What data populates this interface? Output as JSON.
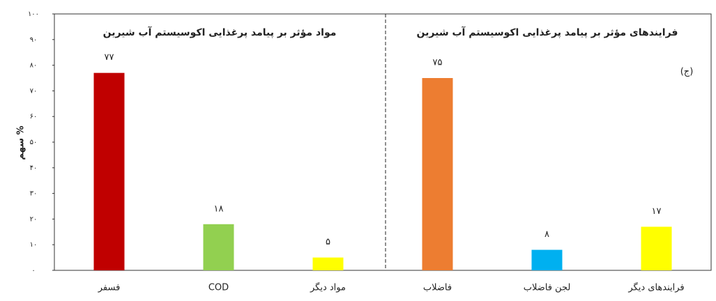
{
  "chart_data": {
    "type": "bar",
    "ylabel": "سهم %",
    "panel_titles": [
      "مواد مؤثر بر پیامد پرغذایی اکوسیستم آب شیرین",
      "فرایندهای مؤثر بر پیامد پرغذایی اکوسیستم آب شیرین"
    ],
    "annotation": "(ج)",
    "categories": [
      "فسفر",
      "COD",
      "مواد دیگر",
      "فاضلاب",
      "لجن فاضلاب",
      "فرایندهای دیگر"
    ],
    "values": [
      77,
      18,
      5,
      75,
      8,
      17
    ],
    "value_labels": [
      "۷۷",
      "۱۸",
      "۵",
      "۷۵",
      "۸",
      "۱۷"
    ],
    "colors": [
      "#c00000",
      "#92d050",
      "#ffff00",
      "#ed7d31",
      "#00b0f0",
      "#ffff00"
    ],
    "ylim": [
      0,
      100
    ],
    "yticks": [
      {
        "value": 0,
        "label": "۰"
      },
      {
        "value": 10,
        "label": "۱۰"
      },
      {
        "value": 20,
        "label": "۲۰"
      },
      {
        "value": 30,
        "label": "۳۰"
      },
      {
        "value": 40,
        "label": "۴۰"
      },
      {
        "value": 50,
        "label": "۵۰"
      },
      {
        "value": 60,
        "label": "۶۰"
      },
      {
        "value": 70,
        "label": "۷۰"
      },
      {
        "value": 80,
        "label": "۸۰"
      },
      {
        "value": 90,
        "label": "۹۰"
      },
      {
        "value": 100,
        "label": "۱۰۰"
      }
    ]
  }
}
